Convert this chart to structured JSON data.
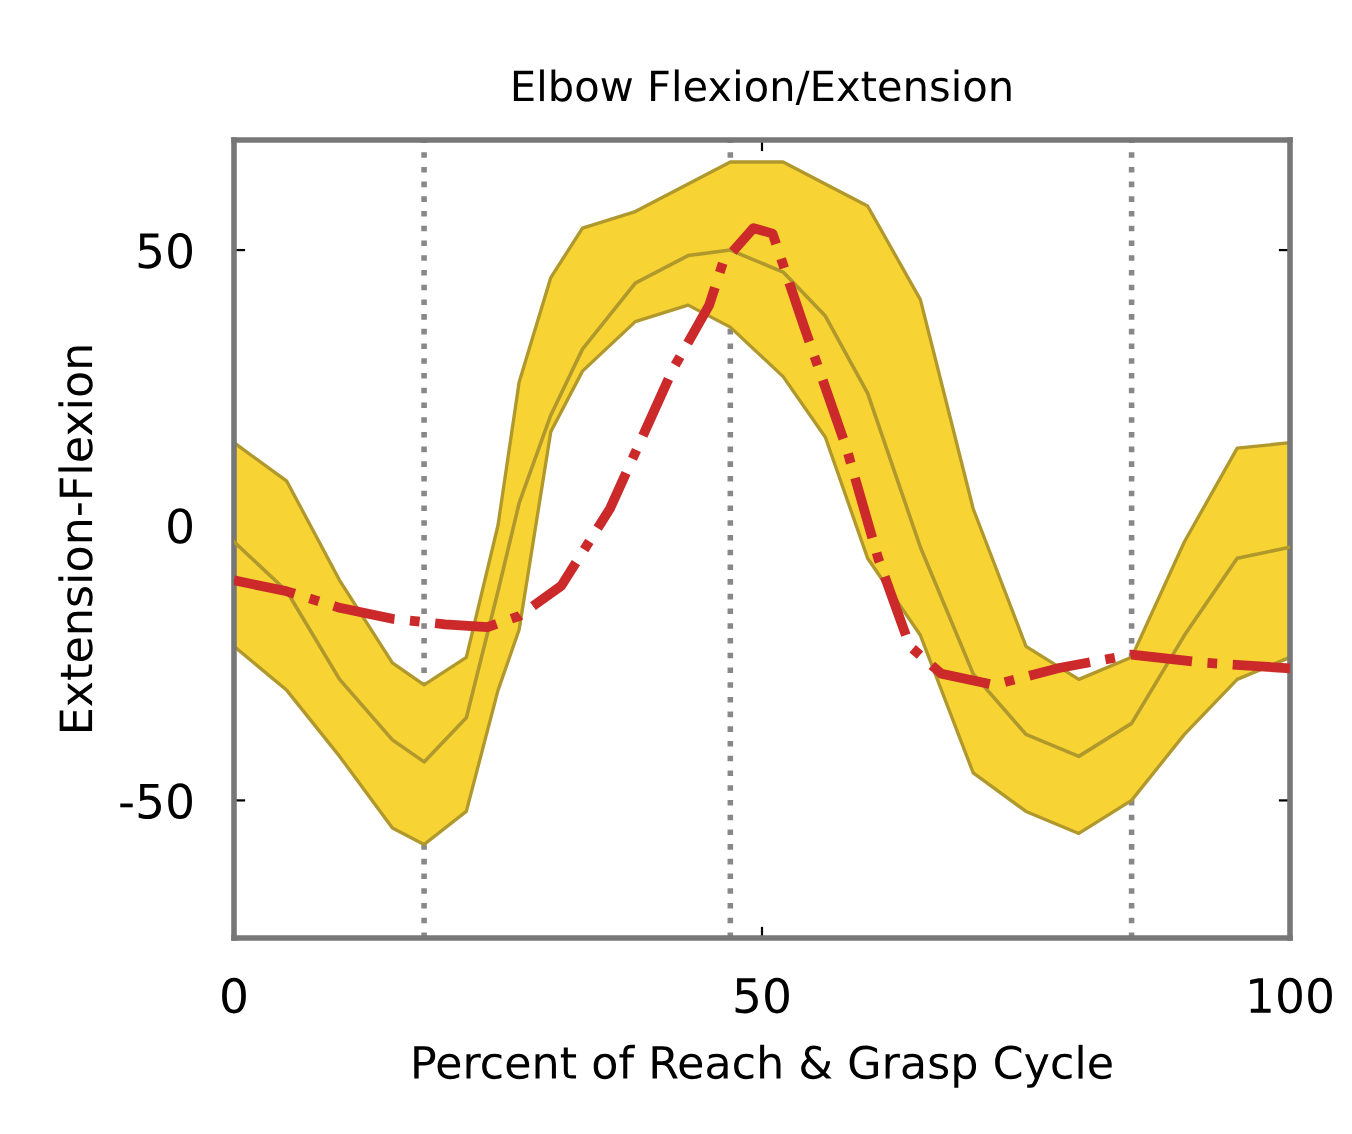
{
  "chart_data": {
    "type": "line",
    "title": "Elbow Flexion/Extension",
    "xlabel": "Percent of Reach & Grasp Cycle",
    "ylabel": "Extension-Flexion",
    "xlim": [
      0,
      100
    ],
    "ylim": [
      -75,
      70
    ],
    "xticks": [
      0,
      50,
      100
    ],
    "yticks": [
      -50,
      0,
      50
    ],
    "grid": false,
    "legend": false,
    "series": [
      {
        "color": "#b0982c",
        "line_style": "solid",
        "x": [
          0,
          5,
          10,
          15,
          18,
          22,
          25,
          27,
          30,
          33,
          38,
          43,
          47,
          52,
          56,
          60,
          65,
          70,
          75,
          80,
          85,
          90,
          95,
          100
        ],
        "values": [
          -3,
          -12,
          -28,
          -39,
          -43,
          -35,
          -12,
          4,
          20,
          32,
          44,
          49,
          50,
          46,
          38,
          24,
          -4,
          -27,
          -38,
          -42,
          -36,
          -20,
          -6,
          -4
        ],
        "upper": [
          15,
          8,
          -10,
          -25,
          -29,
          -24,
          0,
          26,
          45,
          54,
          57,
          62,
          66,
          66,
          62,
          58,
          41,
          3,
          -22,
          -28,
          -24,
          -3,
          14,
          15
        ],
        "lower": [
          -22,
          -30,
          -42,
          -55,
          -58,
          -52,
          -30,
          -19,
          17,
          28,
          37,
          40,
          36,
          27,
          16,
          -6,
          -20,
          -45,
          -52,
          -56,
          -50,
          -38,
          -28,
          -24
        ]
      },
      {
        "color": "#cc2a2a",
        "line_style": "dashdot",
        "x": [
          0,
          5,
          10,
          15,
          20,
          24,
          27,
          31,
          35.6,
          41.6,
          45,
          46.3,
          49.2,
          51,
          54,
          58,
          61,
          64,
          67,
          72,
          78,
          85,
          92,
          100
        ],
        "values": [
          -10,
          -12,
          -15,
          -17,
          -18,
          -18.5,
          -16.5,
          -11,
          3,
          28.5,
          40,
          47.7,
          54,
          53,
          36,
          14,
          -6,
          -22,
          -27,
          -29,
          -26,
          -23.5,
          -25,
          -26
        ]
      }
    ],
    "ref_lines": [
      {
        "axis": "x",
        "value": 18,
        "color": "#888888",
        "line_style": "dotted"
      },
      {
        "axis": "x",
        "value": 47,
        "color": "#888888",
        "line_style": "dotted"
      },
      {
        "axis": "x",
        "value": 85,
        "color": "#888888",
        "line_style": "dotted"
      }
    ]
  }
}
